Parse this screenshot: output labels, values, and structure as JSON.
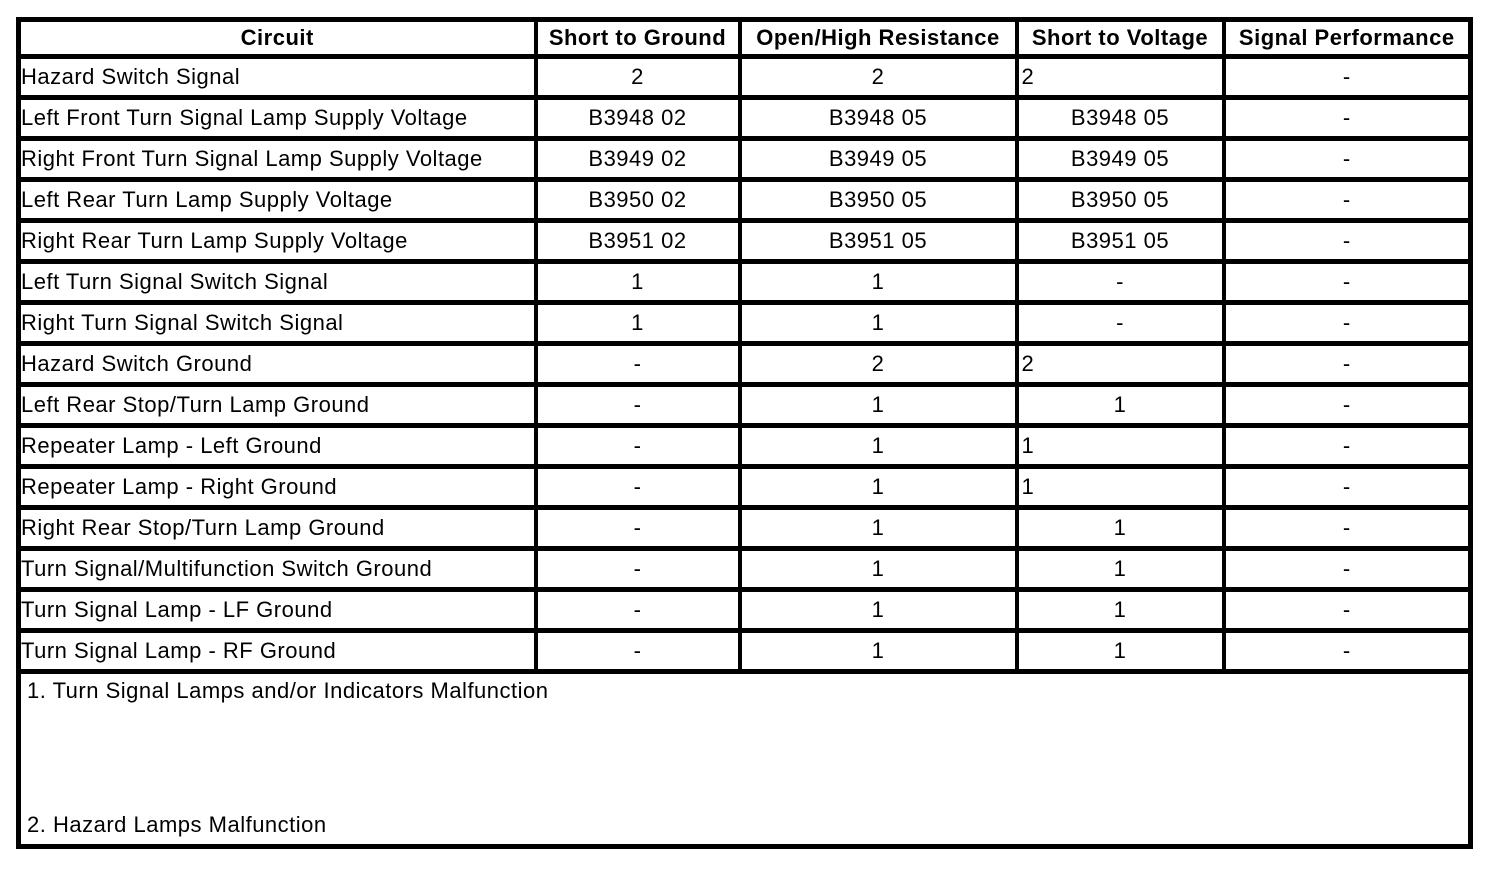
{
  "colors": {
    "border": "#000000",
    "background": "#ffffff",
    "text": "#000000"
  },
  "table": {
    "columns": [
      "Circuit",
      "Short to Ground",
      "Open/High Resistance",
      "Short to Voltage",
      "Signal Performance"
    ],
    "rows": [
      {
        "circuit": "Hazard Switch Signal",
        "cells": [
          {
            "text": "2"
          },
          {
            "text": "2"
          },
          {
            "text": "2",
            "align": "left"
          },
          {
            "text": "-"
          }
        ]
      },
      {
        "circuit": "Left Front Turn Signal Lamp Supply Voltage",
        "cells": [
          {
            "text": "B3948 02"
          },
          {
            "text": "B3948 05"
          },
          {
            "text": "B3948 05"
          },
          {
            "text": "-"
          }
        ]
      },
      {
        "circuit": "Right Front Turn Signal Lamp Supply Voltage",
        "cells": [
          {
            "text": "B3949 02"
          },
          {
            "text": "B3949 05"
          },
          {
            "text": "B3949 05"
          },
          {
            "text": "-"
          }
        ]
      },
      {
        "circuit": "Left Rear Turn Lamp Supply Voltage",
        "cells": [
          {
            "text": "B3950 02"
          },
          {
            "text": "B3950 05"
          },
          {
            "text": "B3950 05"
          },
          {
            "text": "-"
          }
        ]
      },
      {
        "circuit": "Right Rear Turn Lamp Supply Voltage",
        "cells": [
          {
            "text": "B3951 02"
          },
          {
            "text": "B3951 05"
          },
          {
            "text": "B3951 05"
          },
          {
            "text": "-"
          }
        ]
      },
      {
        "circuit": "Left Turn Signal Switch Signal",
        "cells": [
          {
            "text": "1"
          },
          {
            "text": "1"
          },
          {
            "text": "-"
          },
          {
            "text": "-"
          }
        ]
      },
      {
        "circuit": "Right Turn Signal Switch Signal",
        "cells": [
          {
            "text": "1"
          },
          {
            "text": "1"
          },
          {
            "text": "-"
          },
          {
            "text": "-"
          }
        ]
      },
      {
        "circuit": "Hazard Switch Ground",
        "cells": [
          {
            "text": "-"
          },
          {
            "text": "2"
          },
          {
            "text": "2",
            "align": "left"
          },
          {
            "text": "-"
          }
        ]
      },
      {
        "circuit": "Left Rear Stop/Turn Lamp Ground",
        "cells": [
          {
            "text": "-"
          },
          {
            "text": "1"
          },
          {
            "text": "1"
          },
          {
            "text": "-"
          }
        ]
      },
      {
        "circuit": "Repeater Lamp - Left Ground",
        "cells": [
          {
            "text": "-"
          },
          {
            "text": "1"
          },
          {
            "text": "1",
            "align": "left"
          },
          {
            "text": "-"
          }
        ]
      },
      {
        "circuit": "Repeater Lamp - Right Ground",
        "cells": [
          {
            "text": "-"
          },
          {
            "text": "1"
          },
          {
            "text": "1",
            "align": "left"
          },
          {
            "text": "-"
          }
        ]
      },
      {
        "circuit": "Right Rear Stop/Turn Lamp Ground",
        "cells": [
          {
            "text": "-"
          },
          {
            "text": "1"
          },
          {
            "text": "1"
          },
          {
            "text": "-"
          }
        ]
      },
      {
        "circuit": "Turn Signal/Multifunction Switch Ground",
        "cells": [
          {
            "text": "-"
          },
          {
            "text": "1"
          },
          {
            "text": "1"
          },
          {
            "text": "-"
          }
        ]
      },
      {
        "circuit": "Turn Signal Lamp - LF Ground",
        "cells": [
          {
            "text": "-"
          },
          {
            "text": "1"
          },
          {
            "text": "1"
          },
          {
            "text": "-"
          }
        ]
      },
      {
        "circuit": "Turn Signal Lamp - RF Ground",
        "cells": [
          {
            "text": "-"
          },
          {
            "text": "1"
          },
          {
            "text": "1"
          },
          {
            "text": "-"
          }
        ]
      }
    ],
    "footnotes": [
      "1. Turn Signal Lamps and/or Indicators Malfunction",
      "2. Hazard Lamps Malfunction"
    ]
  }
}
